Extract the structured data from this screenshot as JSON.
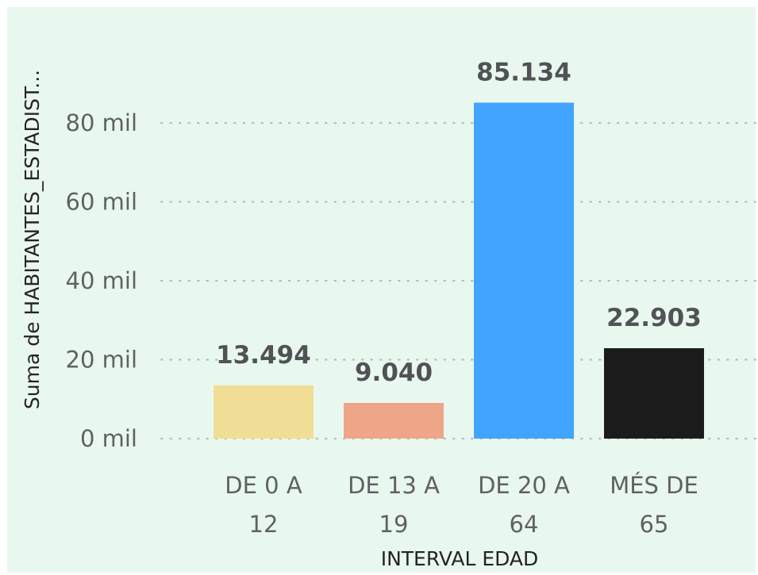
{
  "chart_data": {
    "type": "bar",
    "categories": [
      [
        "DE 0 A",
        "12"
      ],
      [
        "DE 13 A",
        "19"
      ],
      [
        "DE 20 A",
        "64"
      ],
      [
        "MÉS DE",
        "65"
      ]
    ],
    "values": [
      13494,
      9040,
      85134,
      22903
    ],
    "data_labels": [
      "13.494",
      "9.040",
      "85.134",
      "22.903"
    ],
    "bar_colors": [
      "#f0de96",
      "#efa688",
      "#41a4ff",
      "#1b1b1b"
    ],
    "xlabel": "INTERVAL EDAD",
    "ylabel": "Suma de HABITANTES_ESTADIST...",
    "ylim": [
      0,
      90000
    ],
    "yticks": [
      0,
      20000,
      40000,
      60000,
      80000
    ],
    "ytick_labels": [
      "0 mil",
      "20 mil",
      "40 mil",
      "60 mil",
      "80 mil"
    ],
    "grid": "horizontal dotted",
    "legend": "none"
  },
  "colors": {
    "background": "#e9f8ee",
    "text": "#5f6164",
    "data_label": "#505255"
  }
}
